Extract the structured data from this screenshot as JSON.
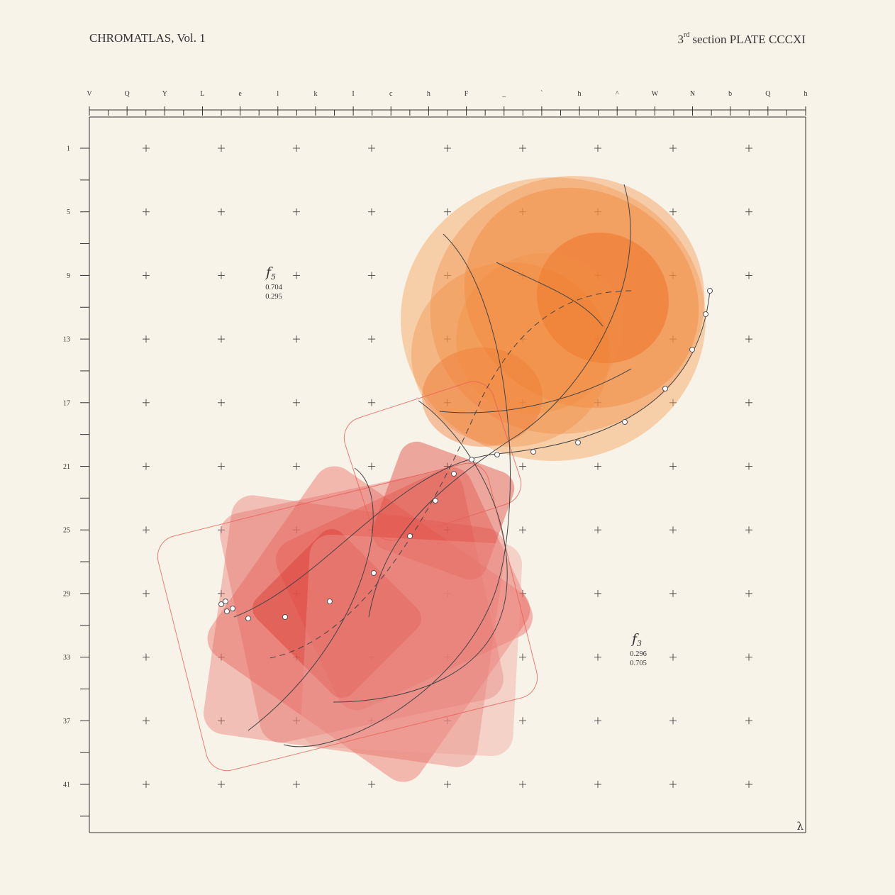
{
  "header": {
    "left": "CHROMATLAS, Vol. 1",
    "right_sup_num": "3",
    "right_sup": "rd",
    "right_rest": "section  PLATE CCCXI"
  },
  "columns": [
    "V",
    "Q",
    "Y",
    "L",
    "e",
    "l",
    "k",
    "I",
    "c",
    "h",
    "F",
    "_",
    "`",
    "h",
    "^",
    "W",
    "N",
    "b",
    "Q",
    "h"
  ],
  "rows": [
    "1",
    "5",
    "9",
    "13",
    "17",
    "21",
    "25",
    "29",
    "33",
    "37",
    "41"
  ],
  "axis_symbol": "λ",
  "labels": [
    {
      "name": "f",
      "sub": "5",
      "v1": "0.704",
      "v2": "0.295"
    },
    {
      "name": "f",
      "sub": "3",
      "v1": "0.296",
      "v2": "0.705"
    }
  ],
  "colors": {
    "paper": "#f8f3e8",
    "ink": "#333333",
    "orange": "#f07a2c",
    "orange_light": "#f4a15a",
    "red": "#e0443a",
    "red_light": "#e8807a"
  }
}
